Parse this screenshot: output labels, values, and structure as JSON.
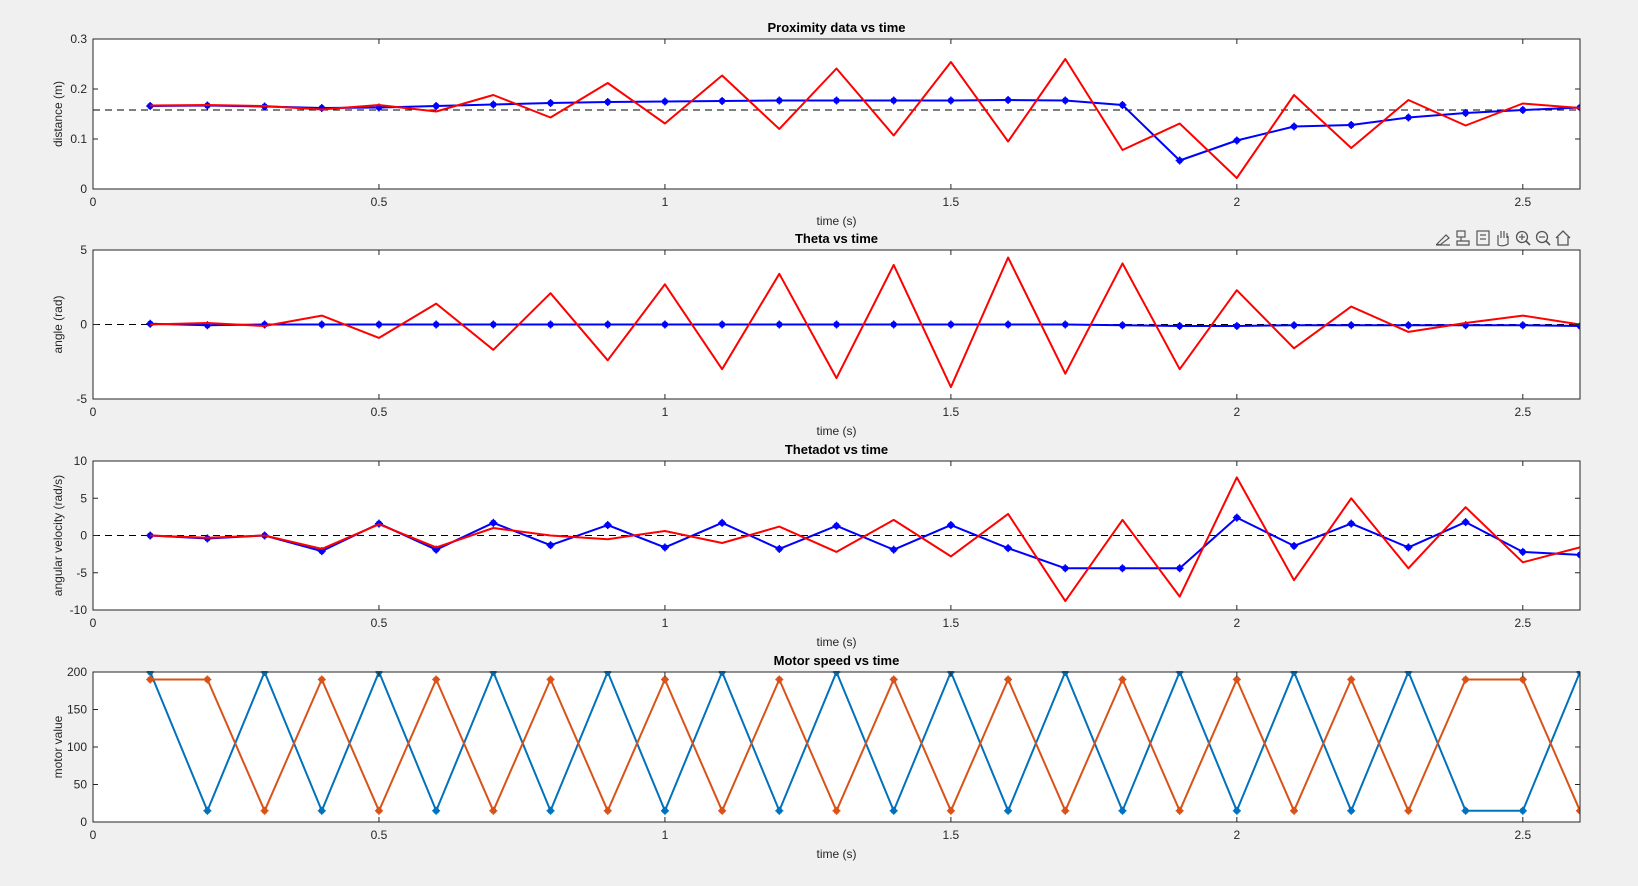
{
  "figure": {
    "background": "#f0f0f0"
  },
  "toolbar": {
    "icons": [
      "brush-icon",
      "datatip-icon",
      "restore-view-icon",
      "pan-hand-icon",
      "zoom-in-icon",
      "zoom-out-icon",
      "home-icon"
    ]
  },
  "colors": {
    "blue": "#0000ff",
    "red": "#ff0000",
    "ref": "#000000",
    "motor1": "#0072bd",
    "motor2": "#d95319"
  },
  "chart_data": [
    {
      "type": "line",
      "title": "Proximity data vs time",
      "xlabel": "time (s)",
      "ylabel": "distance (m)",
      "xlim": [
        0,
        2.6
      ],
      "ylim": [
        0,
        0.3
      ],
      "xticks": [
        0,
        0.5,
        1,
        1.5,
        2,
        2.5
      ],
      "xtick_labels": [
        "0",
        "0.5",
        "1",
        "1.5",
        "2",
        "2.5"
      ],
      "yticks": [
        0,
        0.1,
        0.2,
        0.3
      ],
      "ytick_labels": [
        "0",
        "0.1",
        "0.2",
        "0.3"
      ],
      "reference_line": 0.158,
      "x": [
        0.1,
        0.2,
        0.3,
        0.4,
        0.5,
        0.6,
        0.7,
        0.8,
        0.9,
        1.0,
        1.1,
        1.2,
        1.3,
        1.4,
        1.5,
        1.6,
        1.7,
        1.8,
        1.9,
        2.0,
        2.1,
        2.2,
        2.3,
        2.4,
        2.5,
        2.6
      ],
      "series": [
        {
          "color": "#0000ff",
          "markers": true,
          "values": [
            0.166,
            0.167,
            0.165,
            0.162,
            0.163,
            0.166,
            0.169,
            0.172,
            0.174,
            0.175,
            0.176,
            0.177,
            0.177,
            0.177,
            0.177,
            0.178,
            0.177,
            0.168,
            0.057,
            0.097,
            0.125,
            0.128,
            0.143,
            0.152,
            0.158,
            0.163
          ]
        },
        {
          "color": "#ff0000",
          "markers": false,
          "values": [
            0.167,
            0.168,
            0.166,
            0.159,
            0.168,
            0.155,
            0.188,
            0.143,
            0.212,
            0.131,
            0.227,
            0.12,
            0.241,
            0.107,
            0.254,
            0.095,
            0.26,
            0.078,
            0.131,
            0.022,
            0.188,
            0.082,
            0.178,
            0.127,
            0.171,
            0.162
          ]
        }
      ]
    },
    {
      "type": "line",
      "title": "Theta vs time",
      "xlabel": "time (s)",
      "ylabel": "angle (rad)",
      "xlim": [
        0,
        2.6
      ],
      "ylim": [
        -5,
        5
      ],
      "xticks": [
        0,
        0.5,
        1,
        1.5,
        2,
        2.5
      ],
      "xtick_labels": [
        "0",
        "0.5",
        "1",
        "1.5",
        "2",
        "2.5"
      ],
      "yticks": [
        -5,
        0,
        5
      ],
      "ytick_labels": [
        "-5",
        "0",
        "5"
      ],
      "reference_line": 0,
      "x": [
        0.1,
        0.2,
        0.3,
        0.4,
        0.5,
        0.6,
        0.7,
        0.8,
        0.9,
        1.0,
        1.1,
        1.2,
        1.3,
        1.4,
        1.5,
        1.6,
        1.7,
        1.8,
        1.9,
        2.0,
        2.1,
        2.2,
        2.3,
        2.4,
        2.5,
        2.6
      ],
      "series": [
        {
          "color": "#0000ff",
          "markers": true,
          "values": [
            0.05,
            -0.05,
            0.0,
            0.0,
            0.0,
            0.0,
            0.0,
            0.0,
            0.0,
            0.0,
            0.0,
            0.0,
            0.0,
            0.0,
            0.0,
            0.0,
            0.0,
            -0.05,
            -0.1,
            -0.1,
            -0.05,
            -0.05,
            -0.05,
            -0.05,
            -0.05,
            -0.1
          ]
        },
        {
          "color": "#ff0000",
          "markers": false,
          "values": [
            0.0,
            0.1,
            -0.1,
            0.6,
            -0.9,
            1.4,
            -1.7,
            2.1,
            -2.4,
            2.7,
            -3.0,
            3.4,
            -3.6,
            4.0,
            -4.2,
            4.5,
            -3.3,
            4.1,
            -3.0,
            2.3,
            -1.6,
            1.2,
            -0.5,
            0.1,
            0.6,
            0.0
          ]
        }
      ]
    },
    {
      "type": "line",
      "title": "Thetadot vs time",
      "xlabel": "time (s)",
      "ylabel": "angular velocity (rad/s)",
      "xlim": [
        0,
        2.6
      ],
      "ylim": [
        -10,
        10
      ],
      "xticks": [
        0,
        0.5,
        1,
        1.5,
        2,
        2.5
      ],
      "xtick_labels": [
        "0",
        "0.5",
        "1",
        "1.5",
        "2",
        "2.5"
      ],
      "yticks": [
        -10,
        -5,
        0,
        5,
        10
      ],
      "ytick_labels": [
        "-10",
        "-5",
        "0",
        "5",
        "10"
      ],
      "reference_line": 0,
      "x": [
        0.1,
        0.2,
        0.3,
        0.4,
        0.5,
        0.6,
        0.7,
        0.8,
        0.9,
        1.0,
        1.1,
        1.2,
        1.3,
        1.4,
        1.5,
        1.6,
        1.7,
        1.8,
        1.9,
        2.0,
        2.1,
        2.2,
        2.3,
        2.4,
        2.5,
        2.6
      ],
      "series": [
        {
          "color": "#0000ff",
          "markers": true,
          "values": [
            0.0,
            -0.4,
            0.0,
            -2.1,
            1.6,
            -1.9,
            1.7,
            -1.3,
            1.4,
            -1.6,
            1.7,
            -1.8,
            1.3,
            -1.9,
            1.4,
            -1.7,
            -4.4,
            -4.4,
            -4.4,
            2.4,
            -1.4,
            1.6,
            -1.6,
            1.8,
            -2.2,
            -2.6
          ]
        },
        {
          "color": "#ff0000",
          "markers": false,
          "values": [
            0.0,
            -0.3,
            0.0,
            -1.8,
            1.5,
            -1.6,
            1.0,
            0.0,
            -0.5,
            0.6,
            -1.0,
            1.2,
            -2.2,
            2.1,
            -2.8,
            2.9,
            -8.8,
            2.1,
            -8.2,
            7.8,
            -6.0,
            5.0,
            -4.4,
            3.8,
            -3.6,
            -1.6
          ]
        }
      ]
    },
    {
      "type": "line",
      "title": "Motor speed vs time",
      "xlabel": "time (s)",
      "ylabel": "motor value",
      "xlim": [
        0,
        2.6
      ],
      "ylim": [
        0,
        200
      ],
      "xticks": [
        0,
        0.5,
        1,
        1.5,
        2,
        2.5
      ],
      "xtick_labels": [
        "0",
        "0.5",
        "1",
        "1.5",
        "2",
        "2.5"
      ],
      "yticks": [
        0,
        50,
        100,
        150,
        200
      ],
      "ytick_labels": [
        "0",
        "50",
        "100",
        "150",
        "200"
      ],
      "x": [
        0.1,
        0.2,
        0.3,
        0.4,
        0.5,
        0.6,
        0.7,
        0.8,
        0.9,
        1.0,
        1.1,
        1.2,
        1.3,
        1.4,
        1.5,
        1.6,
        1.7,
        1.8,
        1.9,
        2.0,
        2.1,
        2.2,
        2.3,
        2.4,
        2.5,
        2.6
      ],
      "series": [
        {
          "color": "#0072bd",
          "markers": true,
          "values": [
            200,
            15,
            200,
            15,
            200,
            15,
            200,
            15,
            200,
            15,
            200,
            15,
            200,
            15,
            200,
            15,
            200,
            15,
            200,
            15,
            200,
            15,
            200,
            15,
            15,
            200
          ]
        },
        {
          "color": "#d95319",
          "markers": true,
          "values": [
            190,
            190,
            15,
            190,
            15,
            190,
            15,
            190,
            15,
            190,
            15,
            190,
            15,
            190,
            15,
            190,
            15,
            190,
            15,
            190,
            15,
            190,
            15,
            190,
            190,
            15
          ]
        }
      ]
    }
  ]
}
